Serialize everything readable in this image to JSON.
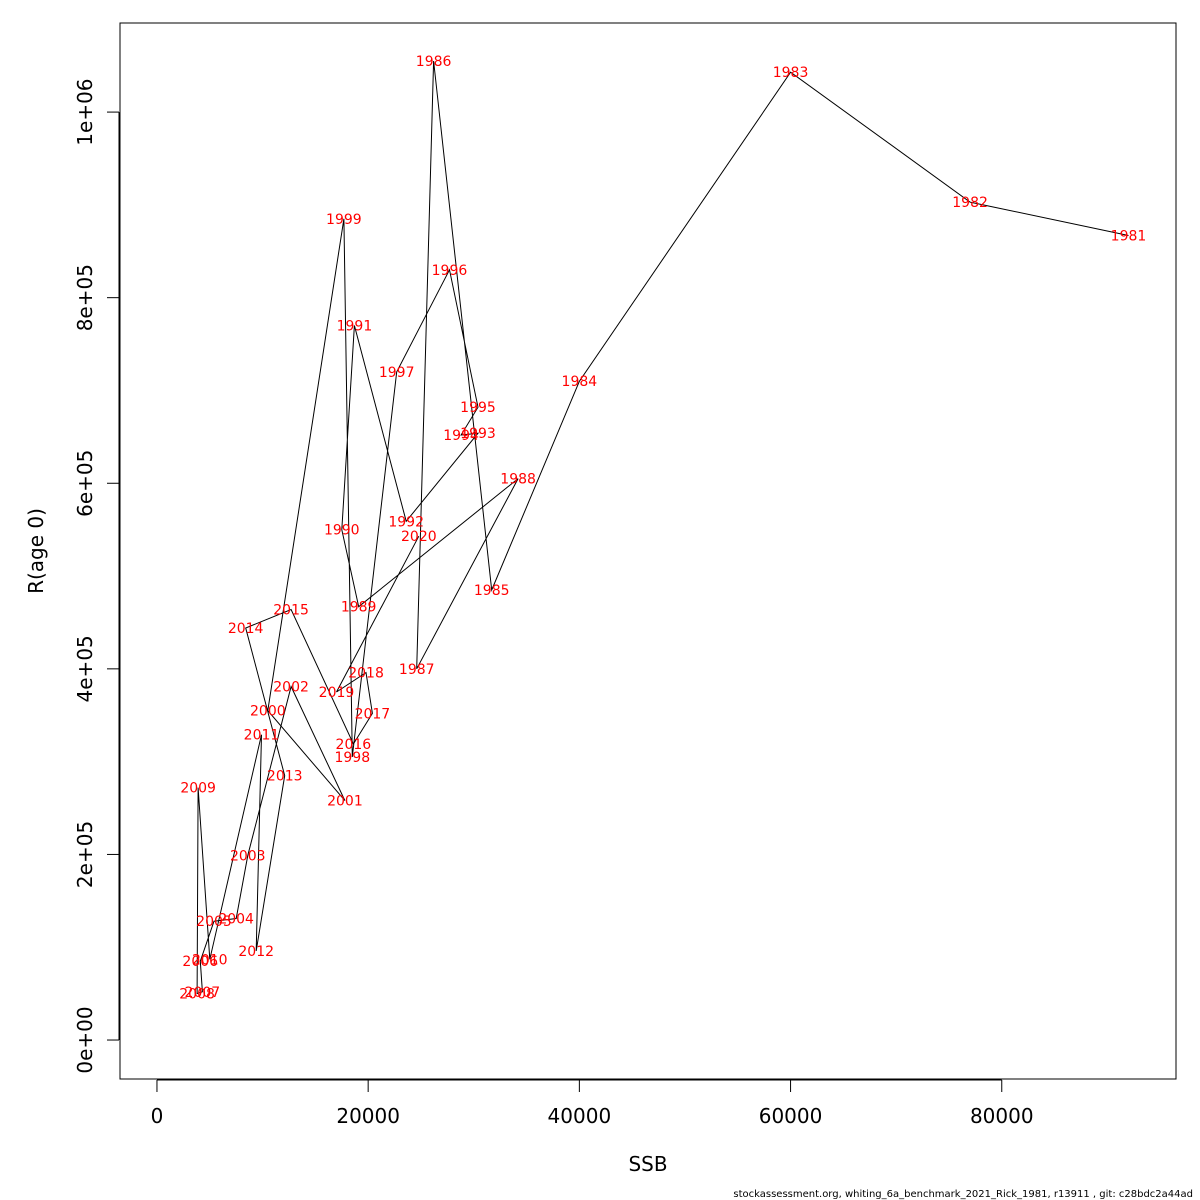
{
  "chart_data": {
    "type": "line",
    "title": "",
    "xlabel": "SSB",
    "ylabel": "R(age 0)",
    "xlim": [
      -3500,
      96500
    ],
    "ylim": [
      -42000,
      1096000
    ],
    "x_ticks": [
      0,
      20000,
      40000,
      60000,
      80000
    ],
    "x_tick_labels": [
      "0",
      "20000",
      "40000",
      "60000",
      "80000"
    ],
    "y_ticks": [
      0,
      200000,
      400000,
      600000,
      800000,
      1000000
    ],
    "y_tick_labels": [
      "0e+00",
      "2e+05",
      "4e+05",
      "6e+05",
      "8e+05",
      "1e+06"
    ],
    "grid": false,
    "line_color": "#000000",
    "label_color": "#ff0000",
    "series": [
      {
        "points": [
          {
            "year": "1981",
            "x": 92000,
            "y": 867000
          },
          {
            "year": "1982",
            "x": 77000,
            "y": 903000
          },
          {
            "year": "1983",
            "x": 60000,
            "y": 1043000
          },
          {
            "year": "1984",
            "x": 40000,
            "y": 710000
          },
          {
            "year": "1985",
            "x": 31700,
            "y": 485000
          },
          {
            "year": "1986",
            "x": 26200,
            "y": 1055000
          },
          {
            "year": "1987",
            "x": 24600,
            "y": 400000
          },
          {
            "year": "1988",
            "x": 34200,
            "y": 605000
          },
          {
            "year": "1989",
            "x": 19100,
            "y": 467000
          },
          {
            "year": "1990",
            "x": 17500,
            "y": 550000
          },
          {
            "year": "1991",
            "x": 18700,
            "y": 770000
          },
          {
            "year": "1992",
            "x": 23600,
            "y": 559000
          },
          {
            "year": "1993",
            "x": 30400,
            "y": 654000
          },
          {
            "year": "1994",
            "x": 28800,
            "y": 652000
          },
          {
            "year": "1995",
            "x": 30400,
            "y": 682000
          },
          {
            "year": "1996",
            "x": 27700,
            "y": 830000
          },
          {
            "year": "1997",
            "x": 22700,
            "y": 720000
          },
          {
            "year": "1998",
            "x": 18500,
            "y": 305000
          },
          {
            "year": "1999",
            "x": 17700,
            "y": 885000
          },
          {
            "year": "2000",
            "x": 10500,
            "y": 355000
          },
          {
            "year": "2001",
            "x": 17800,
            "y": 258000
          },
          {
            "year": "2002",
            "x": 12700,
            "y": 381000
          },
          {
            "year": "2003",
            "x": 8600,
            "y": 199000
          },
          {
            "year": "2004",
            "x": 7500,
            "y": 131000
          },
          {
            "year": "2005",
            "x": 5400,
            "y": 128000
          },
          {
            "year": "2006",
            "x": 4100,
            "y": 85000
          },
          {
            "year": "2007",
            "x": 4300,
            "y": 52000
          },
          {
            "year": "2008",
            "x": 3800,
            "y": 50000
          },
          {
            "year": "2009",
            "x": 3900,
            "y": 272000
          },
          {
            "year": "2010",
            "x": 5000,
            "y": 87000
          },
          {
            "year": "2011",
            "x": 9900,
            "y": 329000
          },
          {
            "year": "2012",
            "x": 9400,
            "y": 96000
          },
          {
            "year": "2013",
            "x": 12100,
            "y": 285000
          },
          {
            "year": "2014",
            "x": 8400,
            "y": 444000
          },
          {
            "year": "2015",
            "x": 12700,
            "y": 464000
          },
          {
            "year": "2016",
            "x": 18600,
            "y": 319000
          },
          {
            "year": "2017",
            "x": 20400,
            "y": 352000
          },
          {
            "year": "2018",
            "x": 19800,
            "y": 396000
          },
          {
            "year": "2019",
            "x": 17000,
            "y": 375000
          },
          {
            "year": "2020",
            "x": 24800,
            "y": 543000
          }
        ]
      }
    ]
  },
  "footer": {
    "note": "stockassessment.org, whiting_6a_benchmark_2021_Rick_1981, r13911 , git: c28bdc2a44ad"
  }
}
